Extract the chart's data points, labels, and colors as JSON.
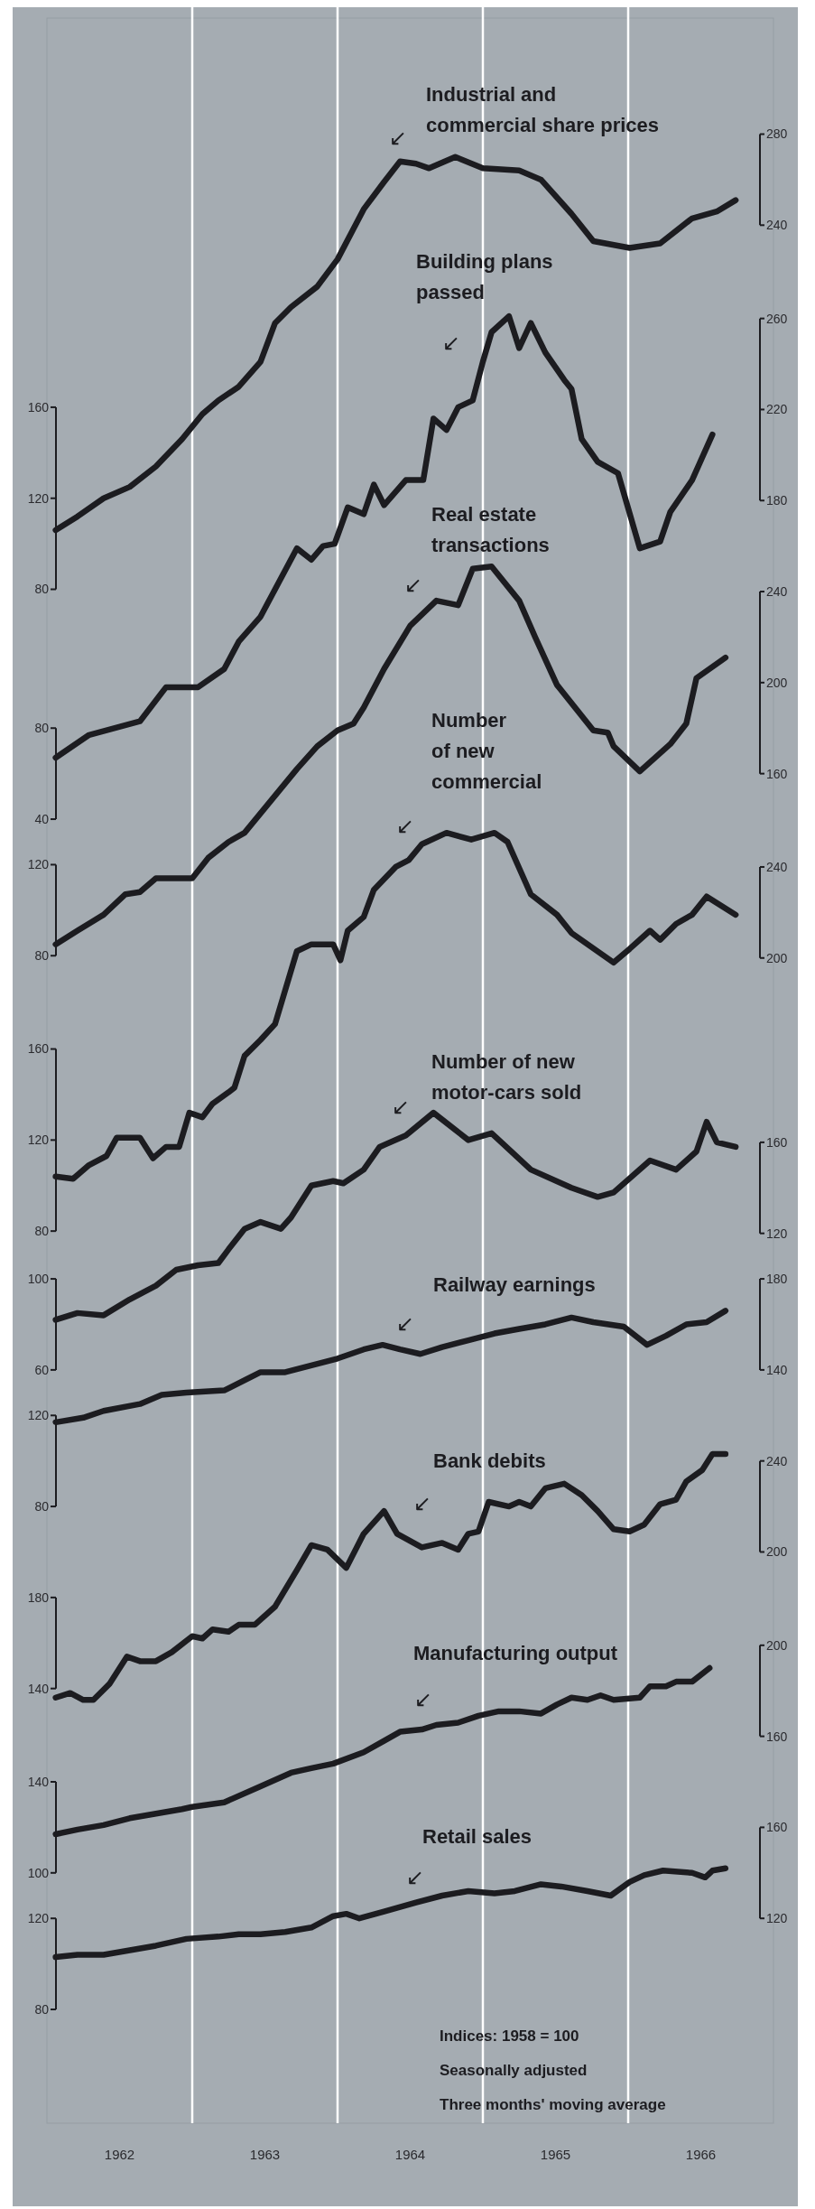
{
  "chart_data": [
    {
      "type": "line",
      "title": "Industrial and commercial share prices",
      "color": "#1c1c20",
      "xlim": [
        1962,
        1967
      ],
      "tick_labels": "y",
      "ylim": [
        -594,
        331
      ],
      "yticks": [
        80,
        120,
        160
      ],
      "y2lim": [
        -594,
        331
      ],
      "y2ticks": [
        240,
        280
      ],
      "annotations": [
        "↙"
      ],
      "x": [
        1962.06,
        1962.21,
        1962.39,
        1962.57,
        1962.75,
        1962.93,
        1963.07,
        1963.18,
        1963.32,
        1963.47,
        1963.57,
        1963.68,
        1963.86,
        1964.0,
        1964.18,
        1964.32,
        1964.43,
        1964.54,
        1964.63,
        1964.81,
        1965.0,
        1965.25,
        1965.4,
        1965.61,
        1965.76,
        1966.01,
        1966.22,
        1966.44,
        1966.61,
        1966.74
      ],
      "values": [
        106,
        112,
        120,
        125,
        134,
        146,
        157,
        163,
        169,
        180,
        197,
        204,
        213,
        225,
        247,
        259,
        268,
        267,
        265,
        270,
        265,
        264,
        260,
        245,
        233,
        230,
        232,
        243,
        246,
        251
      ]
    },
    {
      "type": "line",
      "title": "Building plans passed",
      "color": "#1c1c20",
      "xlim": [
        1962,
        1967
      ],
      "tick_labels": "y",
      "ylim": [
        -533,
        392
      ],
      "yticks": [
        40,
        80
      ],
      "y2lim": [
        -533,
        392
      ],
      "y2ticks": [
        180,
        220,
        260
      ],
      "annotations": [
        "↙"
      ],
      "x": [
        1962.06,
        1962.29,
        1962.64,
        1962.82,
        1963.04,
        1963.22,
        1963.32,
        1963.47,
        1963.72,
        1963.82,
        1963.9,
        1963.98,
        1964.07,
        1964.18,
        1964.25,
        1964.32,
        1964.47,
        1964.59,
        1964.66,
        1964.75,
        1964.83,
        1964.93,
        1965.0,
        1965.06,
        1965.18,
        1965.25,
        1965.33,
        1965.43,
        1965.56,
        1965.61,
        1965.68,
        1965.79,
        1965.93,
        1966.08,
        1966.22,
        1966.29,
        1966.44,
        1966.58
      ],
      "values": [
        67,
        77,
        83,
        98,
        98,
        106,
        118,
        129,
        159,
        154,
        160,
        161,
        177,
        174,
        187,
        178,
        189,
        189,
        216,
        211,
        221,
        224,
        241,
        254,
        261,
        247,
        258,
        245,
        233,
        229,
        207,
        197,
        192,
        159,
        162,
        175,
        189,
        209
      ]
    },
    {
      "type": "line",
      "title": "Real estate transactions",
      "color": "#1c1c20",
      "xlim": [
        1962,
        1967
      ],
      "tick_labels": "y",
      "ylim": [
        -433,
        492
      ],
      "yticks": [
        80,
        120
      ],
      "y2lim": [
        -433,
        492
      ],
      "y2ticks": [
        160,
        200,
        240
      ],
      "annotations": [
        "↙"
      ],
      "x": [
        1962.06,
        1962.21,
        1962.39,
        1962.54,
        1962.64,
        1962.75,
        1963.0,
        1963.11,
        1963.25,
        1963.36,
        1963.54,
        1963.72,
        1963.86,
        1964.0,
        1964.11,
        1964.18,
        1964.32,
        1964.5,
        1964.68,
        1964.83,
        1964.93,
        1965.06,
        1965.25,
        1965.36,
        1965.51,
        1965.76,
        1965.86,
        1965.9,
        1966.08,
        1966.29,
        1966.4,
        1966.47,
        1966.67
      ],
      "values": [
        85,
        91,
        98,
        107,
        108,
        114,
        114,
        123,
        130,
        134,
        148,
        162,
        172,
        179,
        182,
        189,
        206,
        225,
        236,
        234,
        250,
        251,
        236,
        220,
        199,
        179,
        178,
        172,
        161,
        173,
        182,
        202,
        211
      ]
    },
    {
      "type": "line",
      "title": "Number of new commercial",
      "color": "#1c1c20",
      "xlim": [
        1962,
        1967
      ],
      "tick_labels": "y",
      "ylim": [
        -312,
        613
      ],
      "yticks": [
        80,
        120,
        160
      ],
      "y2lim": [
        -312,
        613
      ],
      "y2ticks": [
        200,
        240
      ],
      "annotations": [
        "↙"
      ],
      "x": [
        1962.06,
        1962.18,
        1962.29,
        1962.41,
        1962.48,
        1962.64,
        1962.73,
        1962.82,
        1962.91,
        1962.98,
        1963.07,
        1963.14,
        1963.25,
        1963.29,
        1963.36,
        1963.47,
        1963.57,
        1963.72,
        1963.82,
        1963.97,
        1964.02,
        1964.07,
        1964.18,
        1964.25,
        1964.4,
        1964.49,
        1964.58,
        1964.75,
        1964.92,
        1965.08,
        1965.17,
        1965.33,
        1965.51,
        1965.61,
        1965.9,
        1966.01,
        1966.15,
        1966.22,
        1966.33,
        1966.44,
        1966.54,
        1966.74
      ],
      "values": [
        104,
        103,
        109,
        113,
        121,
        121,
        112,
        117,
        117,
        132,
        130,
        136,
        141,
        143,
        157,
        164,
        171,
        203,
        206,
        206,
        199,
        212,
        218,
        230,
        240,
        243,
        250,
        255,
        252,
        255,
        251,
        228,
        219,
        211,
        198,
        204,
        212,
        208,
        215,
        219,
        227,
        219
      ]
    },
    {
      "type": "line",
      "title": "Number of new motor-cars sold",
      "color": "#1c1c20",
      "xlim": [
        1962,
        1967
      ],
      "tick_labels": "y",
      "ylim": [
        -271,
        654
      ],
      "yticks": [
        60,
        100
      ],
      "y2lim": [
        -271,
        654
      ],
      "y2ticks": [
        120,
        160
      ],
      "annotations": [
        "↙"
      ],
      "x": [
        1962.06,
        1962.21,
        1962.39,
        1962.57,
        1962.75,
        1962.89,
        1963.04,
        1963.18,
        1963.25,
        1963.36,
        1963.47,
        1963.61,
        1963.68,
        1963.82,
        1963.97,
        1964.04,
        1964.18,
        1964.29,
        1964.47,
        1964.66,
        1964.9,
        1965.06,
        1965.33,
        1965.61,
        1965.79,
        1965.9,
        1966.15,
        1966.33,
        1966.47,
        1966.54,
        1966.61,
        1966.74
      ],
      "values": [
        82,
        85,
        84,
        91,
        97,
        104,
        106,
        107,
        113,
        122,
        125,
        122,
        127,
        141,
        143,
        142,
        148,
        158,
        163,
        173,
        161,
        164,
        148,
        140,
        136,
        138,
        152,
        148,
        156,
        169,
        160,
        158
      ]
    },
    {
      "type": "line",
      "title": "Railway earnings",
      "color": "#1c1c20",
      "xlim": [
        1962,
        1967
      ],
      "tick_labels": "y",
      "ylim": [
        -191,
        734
      ],
      "yticks": [
        80,
        120
      ],
      "y2lim": [
        -191,
        734
      ],
      "y2ticks": [
        140,
        180
      ],
      "annotations": [
        "↙"
      ],
      "x": [
        1962.06,
        1962.25,
        1962.39,
        1962.64,
        1962.79,
        1962.96,
        1963.22,
        1963.47,
        1963.64,
        1964.0,
        1964.18,
        1964.31,
        1964.43,
        1964.57,
        1964.72,
        1964.9,
        1965.08,
        1965.25,
        1965.43,
        1965.61,
        1965.76,
        1965.97,
        1966.13,
        1966.26,
        1966.4,
        1966.54,
        1966.67
      ],
      "values": [
        117,
        119,
        122,
        125,
        129,
        130,
        131,
        139,
        139,
        145,
        149,
        151,
        149,
        147,
        150,
        153,
        156,
        158,
        160,
        163,
        161,
        159,
        151,
        155,
        160,
        161,
        166
      ]
    },
    {
      "type": "line",
      "title": "Bank debits",
      "color": "#1c1c20",
      "xlim": [
        1962,
        1967
      ],
      "tick_labels": "y",
      "ylim": [
        -51,
        874
      ],
      "yticks": [
        140,
        180
      ],
      "y2lim": [
        -51,
        874
      ],
      "y2ticks": [
        200,
        240
      ],
      "annotations": [
        "↙"
      ],
      "x": [
        1962.06,
        1962.16,
        1962.25,
        1962.32,
        1962.43,
        1962.55,
        1962.64,
        1962.75,
        1962.86,
        1963.0,
        1963.07,
        1963.14,
        1963.25,
        1963.32,
        1963.43,
        1963.57,
        1963.72,
        1963.82,
        1963.93,
        1964.06,
        1964.18,
        1964.32,
        1964.41,
        1964.58,
        1964.72,
        1964.83,
        1964.9,
        1964.97,
        1965.04,
        1965.18,
        1965.25,
        1965.33,
        1965.43,
        1965.56,
        1965.68,
        1965.79,
        1965.9,
        1966.01,
        1966.11,
        1966.22,
        1966.33,
        1966.4,
        1966.51,
        1966.58,
        1966.67
      ],
      "values": [
        136,
        138,
        135,
        135,
        142,
        154,
        152,
        152,
        156,
        163,
        162,
        166,
        165,
        168,
        168,
        176,
        192,
        203,
        201,
        193,
        208,
        218,
        208,
        202,
        204,
        201,
        208,
        209,
        222,
        220,
        222,
        220,
        228,
        230,
        225,
        218,
        210,
        209,
        212,
        221,
        223,
        231,
        236,
        243,
        243
      ]
    },
    {
      "type": "line",
      "title": "Manufacturing output",
      "color": "#1c1c20",
      "xlim": [
        1962,
        1967
      ],
      "tick_labels": "y",
      "ylim": [
        -10,
        915
      ],
      "yticks": [
        100,
        140
      ],
      "y2lim": [
        -10,
        915
      ],
      "y2ticks": [
        160,
        200
      ],
      "annotations": [
        "↙"
      ],
      "x": [
        1962.06,
        1962.21,
        1962.39,
        1962.57,
        1962.75,
        1962.93,
        1963.0,
        1963.22,
        1963.47,
        1963.68,
        1963.82,
        1963.97,
        1964.18,
        1964.32,
        1964.43,
        1964.58,
        1964.68,
        1964.83,
        1964.97,
        1965.11,
        1965.25,
        1965.4,
        1965.51,
        1965.61,
        1965.72,
        1965.81,
        1965.9,
        1966.08,
        1966.15,
        1966.26,
        1966.33,
        1966.44,
        1966.56
      ],
      "values": [
        117,
        119,
        121,
        124,
        126,
        128,
        129,
        131,
        138,
        144,
        146,
        148,
        153,
        158,
        162,
        163,
        165,
        166,
        169,
        171,
        171,
        170,
        174,
        177,
        176,
        178,
        176,
        177,
        182,
        182,
        184,
        184,
        190
      ]
    },
    {
      "type": "line",
      "title": "Retail sales",
      "color": "#1c1c20",
      "xlim": [
        1962,
        1967
      ],
      "xticks": [
        {
          "value": 1962.5,
          "label": "1962"
        },
        {
          "value": 1963.5,
          "label": "1963"
        },
        {
          "value": 1964.5,
          "label": "1964"
        },
        {
          "value": 1965.5,
          "label": "1965"
        },
        {
          "value": 1966.5,
          "label": "1966"
        }
      ],
      "ylim": [
        30,
        955
      ],
      "yticks": [
        80,
        120
      ],
      "y2lim": [
        30,
        955
      ],
      "y2ticks": [
        120,
        160
      ],
      "ref_lines": [
        {
          "axis": "x",
          "value": 1963,
          "color": "#ffffff"
        },
        {
          "axis": "x",
          "value": 1964,
          "color": "#ffffff"
        },
        {
          "axis": "x",
          "value": 1965,
          "color": "#ffffff"
        },
        {
          "axis": "x",
          "value": 1966,
          "color": "#ffffff"
        }
      ],
      "annotations": [
        "↙",
        "Indices: 1958 = 100",
        "Seasonally adjusted",
        "Three months' moving average"
      ],
      "x": [
        1962.06,
        1962.21,
        1962.39,
        1962.57,
        1962.75,
        1962.96,
        1963.18,
        1963.32,
        1963.47,
        1963.64,
        1963.82,
        1963.97,
        1964.06,
        1964.15,
        1964.32,
        1964.54,
        1964.72,
        1964.9,
        1965.08,
        1965.22,
        1965.4,
        1965.54,
        1965.72,
        1965.88,
        1966.01,
        1966.11,
        1966.24,
        1966.44,
        1966.53,
        1966.58,
        1966.67
      ],
      "values": [
        103,
        104,
        104,
        106,
        108,
        111,
        112,
        113,
        113,
        114,
        116,
        121,
        122,
        120,
        123,
        127,
        130,
        132,
        131,
        132,
        135,
        134,
        132,
        130,
        136,
        139,
        141,
        140,
        138,
        141,
        142
      ]
    }
  ]
}
